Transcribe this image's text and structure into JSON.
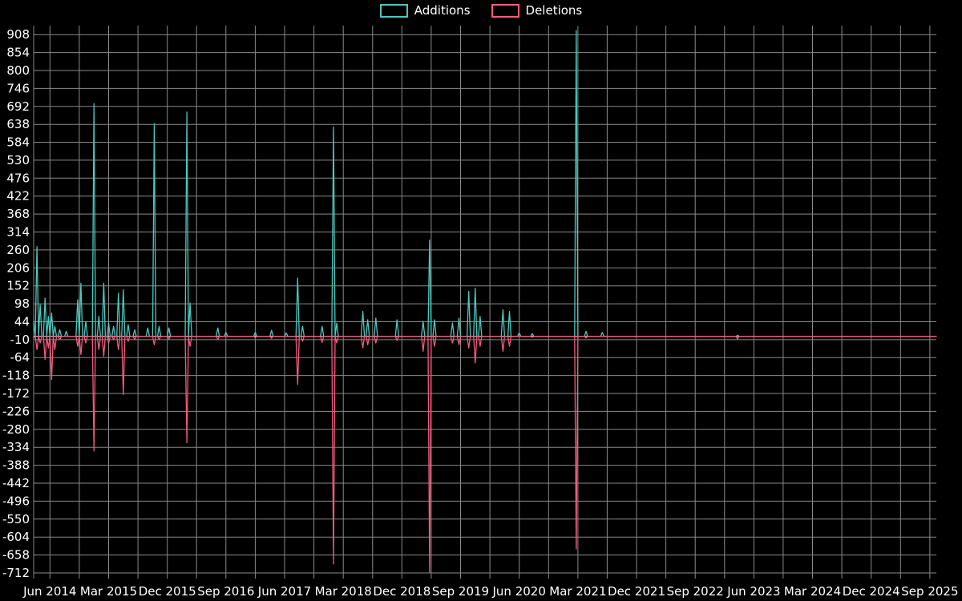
{
  "colors": {
    "background": "#000000",
    "text": "#ffffff",
    "grid": "#8a8a8a",
    "zero_line": "#dcdcdc"
  },
  "chart_data": {
    "type": "line",
    "title": "",
    "legend_position": "top-center",
    "grid": true,
    "x_axis": {
      "labels": [
        "Jun 2014",
        "Mar 2015",
        "Dec 2015",
        "Sep 2016",
        "Jun 2017",
        "Mar 2018",
        "Dec 2018",
        "Sep 2019",
        "Jun 2020",
        "Mar 2021",
        "Dec 2021",
        "Sep 2022",
        "Jun 2023",
        "Mar 2024",
        "Dec 2024",
        "Sep 2025"
      ],
      "label_month_offsets": [
        0,
        9,
        18,
        27,
        36,
        45,
        54,
        63,
        72,
        81,
        90,
        99,
        108,
        117,
        126,
        135
      ],
      "domain_months": [
        -2.5,
        136
      ],
      "gridline_step_months": 4.5
    },
    "y_axis": {
      "ticks": [
        908,
        854,
        800,
        746,
        692,
        638,
        584,
        530,
        476,
        422,
        368,
        314,
        260,
        206,
        152,
        98,
        44,
        -10,
        -64,
        -118,
        -172,
        -226,
        -280,
        -334,
        -388,
        -442,
        -496,
        -550,
        -604,
        -658,
        -712
      ],
      "domain": [
        -729,
        935
      ]
    },
    "baseline": 0,
    "sample_step_months": 0.25,
    "series": [
      {
        "name": "Additions",
        "color": "#4cc8be",
        "spikes": [
          [
            -2.4,
            45
          ],
          [
            -2.0,
            270
          ],
          [
            -1.4,
            95
          ],
          [
            -0.8,
            115
          ],
          [
            -0.3,
            60
          ],
          [
            0.2,
            70
          ],
          [
            0.8,
            30
          ],
          [
            1.5,
            20
          ],
          [
            2.5,
            15
          ],
          [
            4.2,
            110
          ],
          [
            4.8,
            160
          ],
          [
            5.4,
            45
          ],
          [
            6.7,
            700
          ],
          [
            7.4,
            60
          ],
          [
            8.3,
            160
          ],
          [
            8.9,
            40
          ],
          [
            9.8,
            30
          ],
          [
            10.6,
            130
          ],
          [
            11.2,
            140
          ],
          [
            12.0,
            35
          ],
          [
            13.0,
            20
          ],
          [
            15.0,
            25
          ],
          [
            16.0,
            640
          ],
          [
            16.8,
            30
          ],
          [
            18.3,
            25
          ],
          [
            20.9,
            675
          ],
          [
            21.6,
            100
          ],
          [
            25.8,
            25
          ],
          [
            27.0,
            12
          ],
          [
            31.4,
            12
          ],
          [
            34.1,
            18
          ],
          [
            36.2,
            10
          ],
          [
            38.1,
            175
          ],
          [
            38.8,
            30
          ],
          [
            41.7,
            30
          ],
          [
            43.4,
            630
          ],
          [
            44.0,
            40
          ],
          [
            47.9,
            75
          ],
          [
            48.7,
            50
          ],
          [
            50.1,
            55
          ],
          [
            53.2,
            50
          ],
          [
            57.2,
            45
          ],
          [
            58.3,
            290
          ],
          [
            59.0,
            50
          ],
          [
            61.8,
            40
          ],
          [
            62.7,
            55
          ],
          [
            64.3,
            135
          ],
          [
            65.3,
            145
          ],
          [
            66.0,
            60
          ],
          [
            69.5,
            80
          ],
          [
            70.4,
            75
          ],
          [
            72.0,
            10
          ],
          [
            73.9,
            8
          ],
          [
            80.7,
            920
          ],
          [
            82.3,
            15
          ],
          [
            84.8,
            12
          ],
          [
            105.5,
            3
          ]
        ]
      },
      {
        "name": "Deletions",
        "color": "#f25c7e",
        "spikes": [
          [
            -2.4,
            -5
          ],
          [
            -2.0,
            -40
          ],
          [
            -1.4,
            -20
          ],
          [
            -0.8,
            -70
          ],
          [
            -0.3,
            -35
          ],
          [
            0.2,
            -130
          ],
          [
            0.8,
            -40
          ],
          [
            1.5,
            -10
          ],
          [
            4.2,
            -30
          ],
          [
            4.8,
            -55
          ],
          [
            5.4,
            -20
          ],
          [
            6.7,
            -345
          ],
          [
            7.4,
            -40
          ],
          [
            8.3,
            -60
          ],
          [
            8.9,
            -20
          ],
          [
            9.8,
            -10
          ],
          [
            10.6,
            -40
          ],
          [
            11.2,
            -175
          ],
          [
            12.0,
            -15
          ],
          [
            13.0,
            -10
          ],
          [
            16.0,
            -25
          ],
          [
            16.8,
            -10
          ],
          [
            18.3,
            -8
          ],
          [
            20.9,
            -320
          ],
          [
            21.6,
            -30
          ],
          [
            25.8,
            -10
          ],
          [
            31.4,
            -4
          ],
          [
            34.1,
            -6
          ],
          [
            38.1,
            -145
          ],
          [
            38.8,
            -15
          ],
          [
            41.7,
            -18
          ],
          [
            43.4,
            -685
          ],
          [
            44.0,
            -20
          ],
          [
            47.9,
            -35
          ],
          [
            48.7,
            -25
          ],
          [
            50.1,
            -20
          ],
          [
            53.2,
            -12
          ],
          [
            57.2,
            -45
          ],
          [
            58.3,
            -710
          ],
          [
            59.0,
            -30
          ],
          [
            61.8,
            -20
          ],
          [
            62.7,
            -25
          ],
          [
            64.3,
            -35
          ],
          [
            65.3,
            -80
          ],
          [
            66.0,
            -30
          ],
          [
            69.5,
            -45
          ],
          [
            70.4,
            -30
          ],
          [
            73.9,
            -3
          ],
          [
            80.7,
            -640
          ],
          [
            82.3,
            -5
          ],
          [
            105.5,
            -8
          ]
        ]
      }
    ]
  }
}
